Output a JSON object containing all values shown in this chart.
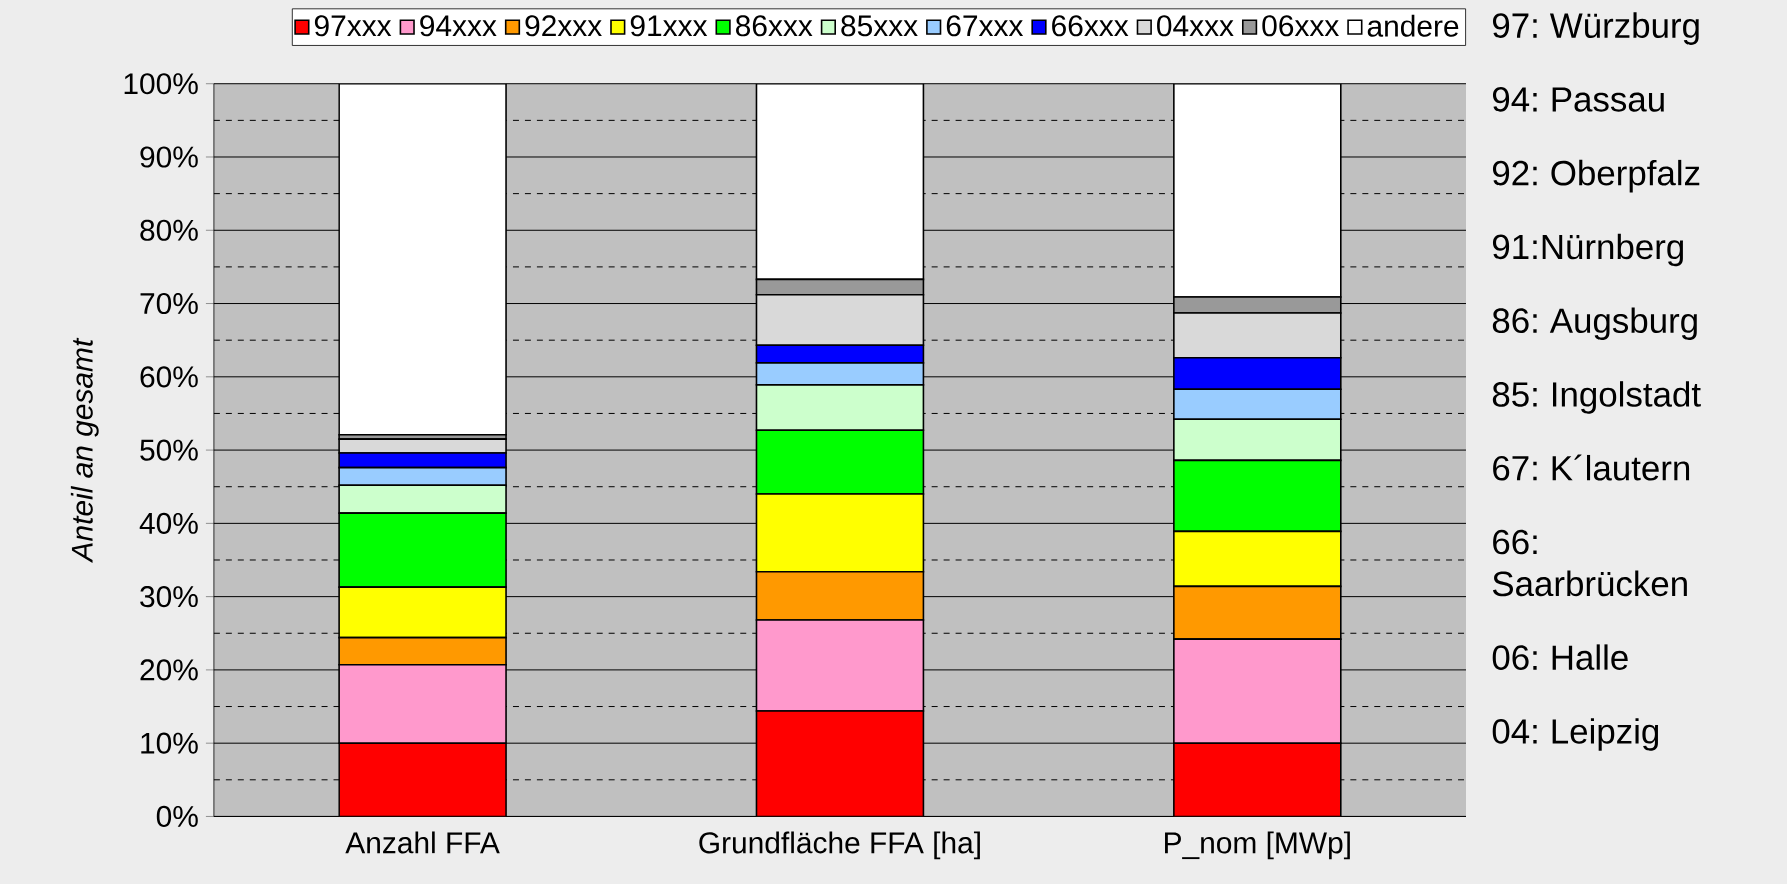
{
  "chart_data": {
    "type": "bar",
    "stacked": true,
    "ylabel": "Anteil an gesamt",
    "categories": [
      "Anzahl FFA",
      "Grundfläche FFA [ha]",
      "P_nom [MWp]"
    ],
    "series": [
      {
        "name": "97xxx",
        "color": "#ff0000",
        "values": [
          10.0,
          14.4,
          10.0
        ]
      },
      {
        "name": "94xxx",
        "color": "#ff99cc",
        "values": [
          10.7,
          12.4,
          14.2
        ]
      },
      {
        "name": "92xxx",
        "color": "#ff9900",
        "values": [
          3.7,
          6.6,
          7.2
        ]
      },
      {
        "name": "91xxx",
        "color": "#ffff00",
        "values": [
          6.9,
          10.6,
          7.5
        ]
      },
      {
        "name": "86xxx",
        "color": "#00ff00",
        "values": [
          10.1,
          8.7,
          9.7
        ]
      },
      {
        "name": "85xxx",
        "color": "#ccffcc",
        "values": [
          3.8,
          6.2,
          5.6
        ]
      },
      {
        "name": "67xxx",
        "color": "#99ccff",
        "values": [
          2.4,
          3.0,
          4.1
        ]
      },
      {
        "name": "66xxx",
        "color": "#0000ff",
        "values": [
          2.0,
          2.4,
          4.3
        ]
      },
      {
        "name": "04xxx",
        "color": "#d9d9d9",
        "values": [
          1.9,
          6.9,
          6.1
        ]
      },
      {
        "name": "06xxx",
        "color": "#999999",
        "values": [
          0.6,
          2.1,
          2.2
        ]
      },
      {
        "name": "andere",
        "color": "#ffffff",
        "values": [
          47.9,
          26.7,
          29.1
        ]
      }
    ],
    "ylim": [
      0,
      100
    ],
    "yticks": [
      {
        "value": 0,
        "label": "0%"
      },
      {
        "value": 10,
        "label": "10%"
      },
      {
        "value": 20,
        "label": "20%"
      },
      {
        "value": 30,
        "label": "30%"
      },
      {
        "value": 40,
        "label": "40%"
      },
      {
        "value": 50,
        "label": "50%"
      },
      {
        "value": 60,
        "label": "60%"
      },
      {
        "value": 70,
        "label": "70%"
      },
      {
        "value": 80,
        "label": "80%"
      },
      {
        "value": 90,
        "label": "90%"
      },
      {
        "value": 100,
        "label": "100%"
      }
    ],
    "grid": "y",
    "legend": "top",
    "annotations": [
      "97: Würzburg",
      "94: Passau",
      "92: Oberpfalz",
      "91:Nürnberg",
      "86: Augsburg",
      "85: Ingolstadt",
      "67: K´lautern",
      "66: Saarbrücken",
      "06: Halle",
      "04: Leipzig"
    ]
  }
}
